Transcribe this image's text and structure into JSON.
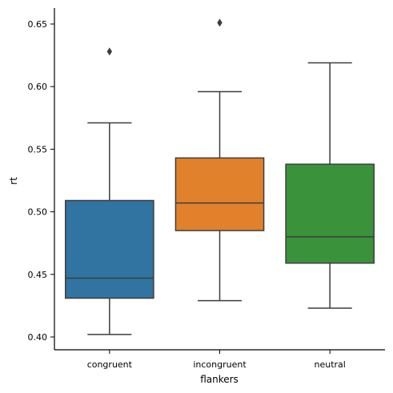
{
  "chart_data": {
    "type": "box",
    "title": "",
    "xlabel": "flankers",
    "ylabel": "rt",
    "ylim": [
      0.39,
      0.662
    ],
    "yticks": [
      0.4,
      0.45,
      0.5,
      0.55,
      0.6,
      0.65
    ],
    "ytick_labels": [
      "0.40",
      "0.45",
      "0.50",
      "0.55",
      "0.60",
      "0.65"
    ],
    "grid": false,
    "categories": [
      "congruent",
      "incongruent",
      "neutral"
    ],
    "colors": [
      "#3274a1",
      "#e1812c",
      "#3a923a"
    ],
    "edge_color": "#3d3d3d",
    "boxes": [
      {
        "category": "congruent",
        "whisker_low": 0.402,
        "q1": 0.431,
        "median": 0.447,
        "q3": 0.509,
        "whisker_high": 0.571,
        "outliers": [
          0.628
        ]
      },
      {
        "category": "incongruent",
        "whisker_low": 0.429,
        "q1": 0.485,
        "median": 0.507,
        "q3": 0.543,
        "whisker_high": 0.596,
        "outliers": [
          0.651
        ]
      },
      {
        "category": "neutral",
        "whisker_low": 0.423,
        "q1": 0.459,
        "median": 0.48,
        "q3": 0.538,
        "whisker_high": 0.619,
        "outliers": []
      }
    ]
  }
}
